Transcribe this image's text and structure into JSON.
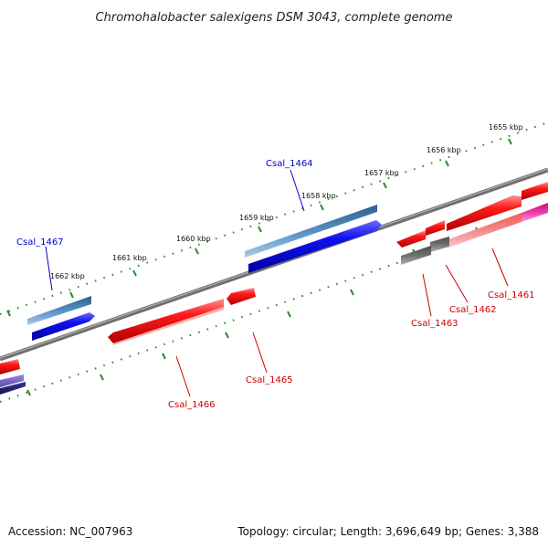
{
  "title": "Chromohalobacter salexigens DSM 3043, complete genome",
  "footer": {
    "accession": "Accession: NC_007963",
    "stats": "Topology: circular; Length: 3,696,649 bp; Genes: 3,388"
  },
  "kbp_labels": [
    "1655 kbp",
    "1656 kbp",
    "1657 kbp",
    "1658 kbp",
    "1659 kbp",
    "1660 kbp",
    "1661 kbp",
    "1662 kbp"
  ],
  "gene_labels": {
    "g1467": "Csal_1467",
    "g1464": "Csal_1464",
    "g1466": "Csal_1466",
    "g1465": "Csal_1465",
    "g1463": "Csal_1463",
    "g1462": "Csal_1462",
    "g1461": "Csal_1461"
  },
  "colors": {
    "forward_label": "#0000cc",
    "reverse_label": "#cc0000",
    "backbone": "#808080",
    "scale_ticks": "#2e8b2e",
    "gene_red": "#e00000",
    "gene_blue": "#0000e0",
    "gene_steelblue": "#4a86b8",
    "gene_pink": "#f07878",
    "gene_gray": "#6a6a6a",
    "gene_magenta": "#e0209a"
  }
}
